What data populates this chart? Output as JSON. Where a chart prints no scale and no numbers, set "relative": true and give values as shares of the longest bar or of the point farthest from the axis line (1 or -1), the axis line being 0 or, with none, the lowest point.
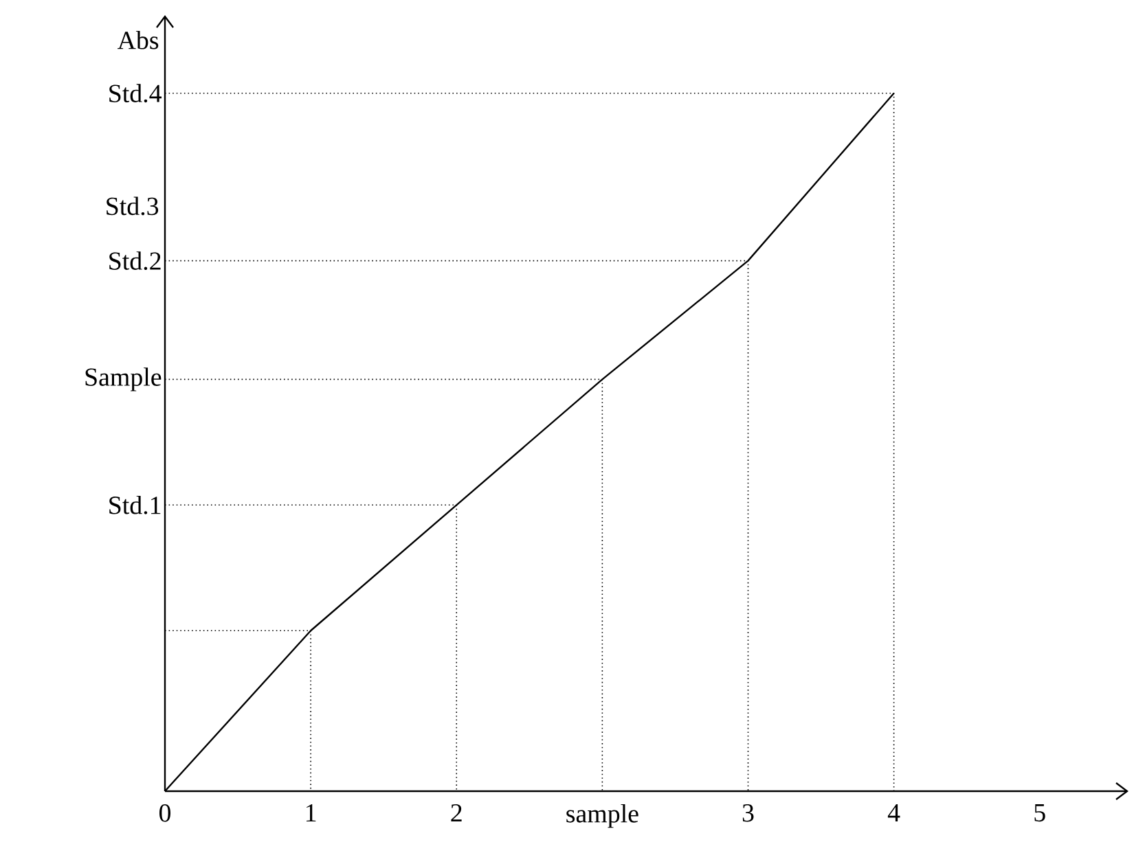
{
  "chart_data": {
    "type": "line",
    "relative": true,
    "ylabel": "Abs",
    "categories": [
      "0",
      "1",
      "2",
      "sample",
      "3",
      "4",
      "5"
    ],
    "series": [
      {
        "color": "#000000",
        "values": [
          0,
          0.23,
          0.41,
          0.59,
          0.76,
          1,
          null
        ]
      }
    ],
    "ref_lines": [
      {
        "axis": "y",
        "value": 0.23,
        "line_style": "dotted"
      },
      {
        "axis": "y",
        "value": 0.41,
        "label": "Std.1",
        "line_style": "dotted"
      },
      {
        "axis": "y",
        "value": 0.59,
        "label": "Sample",
        "line_style": "dotted"
      },
      {
        "axis": "y",
        "value": 0.76,
        "label": "Std.2",
        "line_style": "dotted"
      },
      {
        "axis": "y",
        "value": 1,
        "label": "Std.4",
        "line_style": "dotted"
      }
    ],
    "annotations": [
      "Std.3"
    ]
  }
}
